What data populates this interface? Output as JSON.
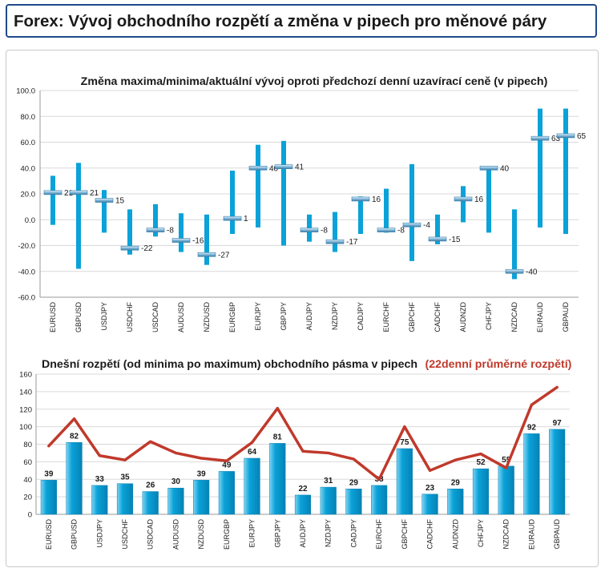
{
  "page": {
    "title": "Forex: Vývoj obchodního rozpětí a změna v pipech pro měnové páry"
  },
  "colors": {
    "header_border": "#1f4a8c",
    "bar": "#0aa2d8",
    "bar_dark": "#0582b5",
    "avg_line": "#c0392b",
    "marker": "#7fb6d8"
  },
  "chart_data": [
    {
      "type": "bar",
      "subtype": "high-low-close",
      "title": "Změna maxima/minima/aktuální vývoj oproti předchozí denní uzavírací ceně (v pipech)",
      "ylim": [
        -60,
        100
      ],
      "yticks": [
        "100.0",
        "80.0",
        "60.0",
        "40.0",
        "20.0",
        "0.0",
        "-20.0",
        "-40.0",
        "-60.0"
      ],
      "grid": true,
      "categories": [
        "EURUSD",
        "GBPUSD",
        "USDJPY",
        "USDCHF",
        "USDCAD",
        "AUDUSD",
        "NZDUSD",
        "EURGBP",
        "EURJPY",
        "GBPJPY",
        "AUDJPY",
        "NZDJPY",
        "CADJPY",
        "EURCHF",
        "GBPCHF",
        "CADCHF",
        "AUDNZD",
        "CHFJPY",
        "NZDCAD",
        "EURAUD",
        "GBPAUD"
      ],
      "series": [
        {
          "name": "high",
          "values": [
            34,
            44,
            23,
            8,
            12,
            5,
            4,
            38,
            58,
            61,
            4,
            6,
            18,
            24,
            43,
            4,
            26,
            41,
            8,
            86,
            86
          ]
        },
        {
          "name": "low",
          "values": [
            -4,
            -38,
            -10,
            -27,
            -13,
            -25,
            -35,
            -11,
            -6,
            -20,
            -17,
            -25,
            -11,
            -10,
            -32,
            -19,
            -2,
            -10,
            -46,
            -6,
            -11
          ]
        },
        {
          "name": "current",
          "values": [
            21,
            21,
            15,
            -22,
            -8,
            -16,
            -27,
            1,
            40,
            41,
            -8,
            -17,
            16,
            -8,
            -4,
            -15,
            16,
            40,
            -40,
            63,
            65
          ]
        }
      ],
      "labels": [
        "21",
        "21",
        "15",
        "-22",
        "-8",
        "-16",
        "-27",
        "1",
        "40",
        "41",
        "-8",
        "-17",
        "16",
        "-8",
        "-4",
        "-15",
        "16",
        "40",
        "-40",
        "63",
        "65"
      ]
    },
    {
      "type": "bar",
      "title": "Dnešní rozpětí (od minima po maximum) obchodního pásma v pipech",
      "subtitle": "(22denní průměrné rozpětí)",
      "ylim": [
        0,
        160
      ],
      "yticks": [
        "160",
        "140",
        "120",
        "100",
        "80",
        "60",
        "40",
        "20",
        "0"
      ],
      "grid": true,
      "categories": [
        "EURUSD",
        "GBPUSD",
        "USDJPY",
        "USDCHF",
        "USDCAD",
        "AUDUSD",
        "NZDUSD",
        "EURGBP",
        "EURJPY",
        "GBPJPY",
        "AUDJPY",
        "NZDJPY",
        "CADJPY",
        "EURCHF",
        "GBPCHF",
        "CADCHF",
        "AUDNZD",
        "CHFJPY",
        "NZDCAD",
        "EURAUD",
        "GBPAUD"
      ],
      "series": [
        {
          "values": [
            39,
            82,
            33,
            35,
            26,
            30,
            39,
            49,
            64,
            81,
            22,
            31,
            29,
            33,
            75,
            23,
            29,
            52,
            55,
            92,
            97
          ]
        },
        {
          "type": "line",
          "values": [
            78,
            109,
            67,
            62,
            83,
            70,
            64,
            61,
            82,
            121,
            72,
            70,
            63,
            40,
            100,
            50,
            62,
            69,
            53,
            125,
            145
          ]
        }
      ],
      "labels": [
        "39",
        "82",
        "33",
        "35",
        "26",
        "30",
        "39",
        "49",
        "64",
        "81",
        "22",
        "31",
        "29",
        "33",
        "75",
        "23",
        "29",
        "52",
        "55",
        "92",
        "97"
      ]
    }
  ]
}
